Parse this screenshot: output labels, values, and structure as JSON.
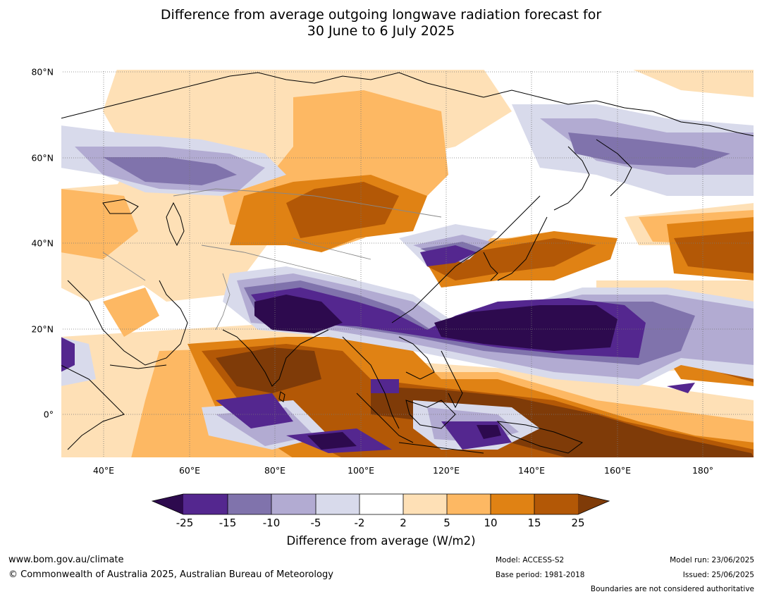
{
  "title": {
    "line1": "Difference from average outgoing longwave radiation forecast for",
    "line2": "30 June to 6 July 2025"
  },
  "map": {
    "lat_labels": [
      "80°N",
      "60°N",
      "40°N",
      "20°N",
      "0°"
    ],
    "lon_labels": [
      "40°E",
      "60°E",
      "80°E",
      "100°E",
      "120°E",
      "140°E",
      "160°E",
      "180°"
    ]
  },
  "colorbar": {
    "ticks": [
      "-25",
      "-15",
      "-10",
      "-5",
      "-2",
      "2",
      "5",
      "10",
      "15",
      "25"
    ],
    "label": "Difference from average (W/m2)",
    "colors": [
      "#2d0a4e",
      "#54278f",
      "#8073ac",
      "#b2abd2",
      "#d8daeb",
      "#ffffff",
      "#fee0b6",
      "#fdb863",
      "#e08214",
      "#b35806",
      "#7f3b08"
    ]
  },
  "footer": {
    "website": "www.bom.gov.au/climate",
    "copyright": "© Commonwealth of Australia 2025, Australian Bureau of Meteorology",
    "model": "Model: ACCESS-S2",
    "base_period": "Base period: 1981-2018",
    "model_run": "Model run: 23/06/2025",
    "issued": "Issued: 25/06/2025",
    "disclaimer": "Boundaries are not considered authoritative"
  }
}
